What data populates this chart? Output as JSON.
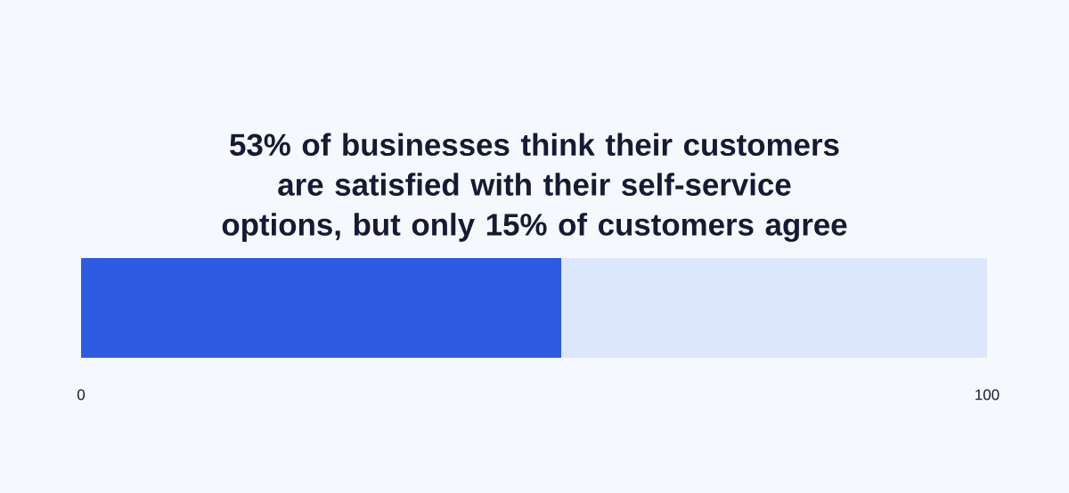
{
  "chart_data": {
    "type": "bar",
    "orientation": "horizontal",
    "stacked": true,
    "title": "53% of businesses think their customers are satisfied with their self-service options, but only 15% of customers agree",
    "categories": [
      null
    ],
    "series": [
      {
        "color": "#2d5be3",
        "values": [
          53
        ]
      },
      {
        "color": "#dce6fc",
        "values": [
          47
        ]
      }
    ],
    "xlim": [
      0,
      100
    ],
    "xticks": [
      0,
      100
    ]
  }
}
